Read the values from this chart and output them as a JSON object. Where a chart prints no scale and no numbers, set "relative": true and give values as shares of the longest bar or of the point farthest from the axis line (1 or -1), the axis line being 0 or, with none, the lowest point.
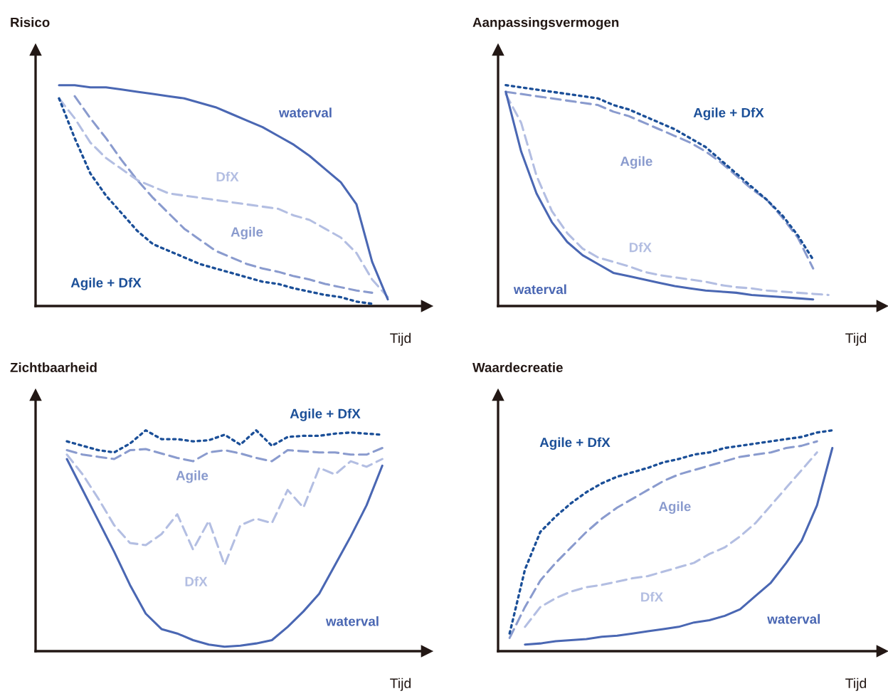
{
  "chart_data": [
    {
      "type": "line",
      "title": "Risico",
      "xlabel": "Tijd",
      "relative": true,
      "categories": [
        null,
        null,
        null,
        null,
        null,
        null,
        null,
        null,
        null,
        null,
        null,
        null,
        null,
        null,
        null,
        null,
        null,
        null,
        null,
        null,
        null,
        null
      ],
      "series": [
        {
          "name": "waterval",
          "color": "#4a67b3",
          "line_style": "solid",
          "values": [
            1,
            1,
            0.99,
            0.99,
            0.98,
            0.97,
            0.96,
            0.95,
            0.94,
            0.92,
            0.9,
            0.87,
            0.84,
            0.81,
            0.77,
            0.73,
            0.68,
            0.62,
            0.56,
            0.46,
            0.2,
            0.03
          ]
        },
        {
          "name": "Agile",
          "color": "#8a9bce",
          "line_style": "dashed",
          "values": [
            null,
            0.95,
            0.85,
            0.76,
            0.66,
            0.57,
            0.49,
            0.42,
            0.35,
            0.3,
            0.25,
            0.22,
            0.19,
            0.17,
            0.155,
            0.135,
            0.12,
            0.1,
            0.085,
            0.07,
            0.06,
            null
          ]
        },
        {
          "name": "DfX",
          "color": "#b3bee2",
          "line_style": "dashed",
          "values": [
            0.94,
            0.85,
            0.74,
            0.67,
            0.62,
            0.57,
            0.54,
            0.51,
            0.5,
            0.49,
            0.48,
            0.47,
            0.46,
            0.45,
            0.44,
            0.41,
            0.39,
            0.35,
            0.31,
            0.24,
            0.12,
            0.04
          ]
        },
        {
          "name": "Agile + DfX",
          "color": "#1b4f98",
          "line_style": "dotted",
          "values": [
            0.94,
            0.76,
            0.6,
            0.5,
            0.42,
            0.34,
            0.28,
            0.25,
            0.22,
            0.19,
            0.17,
            0.15,
            0.13,
            0.11,
            0.1,
            0.08,
            0.065,
            0.05,
            0.04,
            0.02,
            0.01,
            null
          ]
        }
      ]
    },
    {
      "type": "line",
      "title": "Aanpassingsvermogen",
      "xlabel": "Tijd",
      "relative": true,
      "categories": [
        null,
        null,
        null,
        null,
        null,
        null,
        null,
        null,
        null,
        null,
        null,
        null,
        null,
        null,
        null,
        null,
        null,
        null,
        null,
        null,
        null,
        null
      ],
      "series": [
        {
          "name": "waterval",
          "color": "#4a67b3",
          "line_style": "solid",
          "values": [
            0.97,
            0.7,
            0.51,
            0.38,
            0.29,
            0.23,
            0.19,
            0.15,
            0.135,
            0.12,
            0.105,
            0.09,
            0.08,
            0.07,
            0.065,
            0.06,
            0.05,
            0.045,
            0.04,
            0.035,
            0.03,
            null
          ]
        },
        {
          "name": "Agile",
          "color": "#8a9bce",
          "line_style": "dashed",
          "values": [
            0.97,
            0.96,
            0.95,
            0.94,
            0.93,
            0.92,
            0.91,
            0.88,
            0.86,
            0.83,
            0.8,
            0.77,
            0.74,
            0.7,
            0.65,
            0.59,
            0.53,
            0.48,
            0.4,
            0.31,
            0.17,
            null
          ]
        },
        {
          "name": "DfX",
          "color": "#b3bee2",
          "line_style": "dashed",
          "values": [
            0.96,
            0.83,
            0.59,
            0.43,
            0.33,
            0.26,
            0.22,
            0.2,
            0.18,
            0.155,
            0.14,
            0.13,
            0.12,
            0.11,
            0.095,
            0.085,
            0.08,
            0.07,
            0.065,
            0.06,
            0.055,
            0.05
          ]
        },
        {
          "name": "Agile + DfX",
          "color": "#1b4f98",
          "line_style": "dotted",
          "values": [
            1,
            0.99,
            0.98,
            0.97,
            0.96,
            0.95,
            0.94,
            0.91,
            0.89,
            0.86,
            0.83,
            0.8,
            0.76,
            0.72,
            0.66,
            0.6,
            0.54,
            0.48,
            0.41,
            0.32,
            0.21,
            null
          ]
        }
      ]
    },
    {
      "type": "line",
      "title": "Zichtbaarheid",
      "xlabel": "Tijd",
      "relative": true,
      "categories": [
        null,
        null,
        null,
        null,
        null,
        null,
        null,
        null,
        null,
        null,
        null,
        null,
        null,
        null,
        null,
        null,
        null,
        null,
        null,
        null,
        null
      ],
      "series": [
        {
          "name": "waterval",
          "color": "#4a67b3",
          "line_style": "solid",
          "values": [
            0.87,
            0.73,
            0.59,
            0.45,
            0.3,
            0.17,
            0.1,
            0.08,
            0.05,
            0.03,
            0.02,
            0.025,
            0.035,
            0.05,
            0.11,
            0.18,
            0.26,
            0.39,
            0.52,
            0.66,
            0.84
          ]
        },
        {
          "name": "Agile",
          "color": "#8a9bce",
          "line_style": "dashed",
          "values": [
            0.91,
            0.89,
            0.88,
            0.87,
            0.91,
            0.915,
            0.895,
            0.875,
            0.86,
            0.9,
            0.91,
            0.895,
            0.875,
            0.86,
            0.91,
            0.905,
            0.9,
            0.9,
            0.89,
            0.89,
            0.92
          ]
        },
        {
          "name": "DfX",
          "color": "#b3bee2",
          "line_style": "dashed",
          "values": [
            0.89,
            0.8,
            0.69,
            0.57,
            0.49,
            0.48,
            0.53,
            0.62,
            0.46,
            0.59,
            0.39,
            0.57,
            0.6,
            0.58,
            0.73,
            0.65,
            0.83,
            0.8,
            0.86,
            0.835,
            0.87
          ]
        },
        {
          "name": "Agile + DfX",
          "color": "#1b4f98",
          "line_style": "dotted",
          "values": [
            0.95,
            0.93,
            0.91,
            0.9,
            0.94,
            1,
            0.96,
            0.96,
            0.95,
            0.955,
            0.98,
            0.935,
            1,
            0.93,
            0.97,
            0.975,
            0.975,
            0.985,
            0.99,
            0.985,
            0.98
          ]
        }
      ]
    },
    {
      "type": "line",
      "title": "Waardecreatie",
      "xlabel": "Tijd",
      "relative": true,
      "categories": [
        null,
        null,
        null,
        null,
        null,
        null,
        null,
        null,
        null,
        null,
        null,
        null,
        null,
        null,
        null,
        null,
        null,
        null,
        null,
        null,
        null,
        null
      ],
      "series": [
        {
          "name": "waterval",
          "color": "#4a67b3",
          "line_style": "solid",
          "values": [
            null,
            0.03,
            0.035,
            0.045,
            0.05,
            0.055,
            0.065,
            0.07,
            0.08,
            0.09,
            0.1,
            0.11,
            0.13,
            0.14,
            0.16,
            0.19,
            0.25,
            0.31,
            0.4,
            0.5,
            0.66,
            0.92
          ]
        },
        {
          "name": "Agile",
          "color": "#8a9bce",
          "line_style": "dashed",
          "values": [
            0.06,
            0.2,
            0.32,
            0.4,
            0.47,
            0.54,
            0.6,
            0.65,
            0.69,
            0.73,
            0.77,
            0.8,
            0.82,
            0.84,
            0.86,
            0.88,
            0.89,
            0.9,
            0.92,
            0.93,
            0.95,
            null
          ]
        },
        {
          "name": "DfX",
          "color": "#b3bee2",
          "line_style": "dashed",
          "values": [
            null,
            0.11,
            0.2,
            0.24,
            0.27,
            0.29,
            0.3,
            0.315,
            0.33,
            0.34,
            0.36,
            0.38,
            0.4,
            0.44,
            0.47,
            0.52,
            0.58,
            0.66,
            0.74,
            0.82,
            0.9,
            null
          ]
        },
        {
          "name": "Agile + DfX",
          "color": "#1b4f98",
          "line_style": "dotted",
          "values": [
            0.08,
            0.37,
            0.54,
            0.61,
            0.67,
            0.72,
            0.76,
            0.79,
            0.81,
            0.83,
            0.855,
            0.87,
            0.89,
            0.9,
            0.92,
            0.93,
            0.94,
            0.95,
            0.96,
            0.97,
            0.99,
            1
          ]
        }
      ]
    }
  ]
}
